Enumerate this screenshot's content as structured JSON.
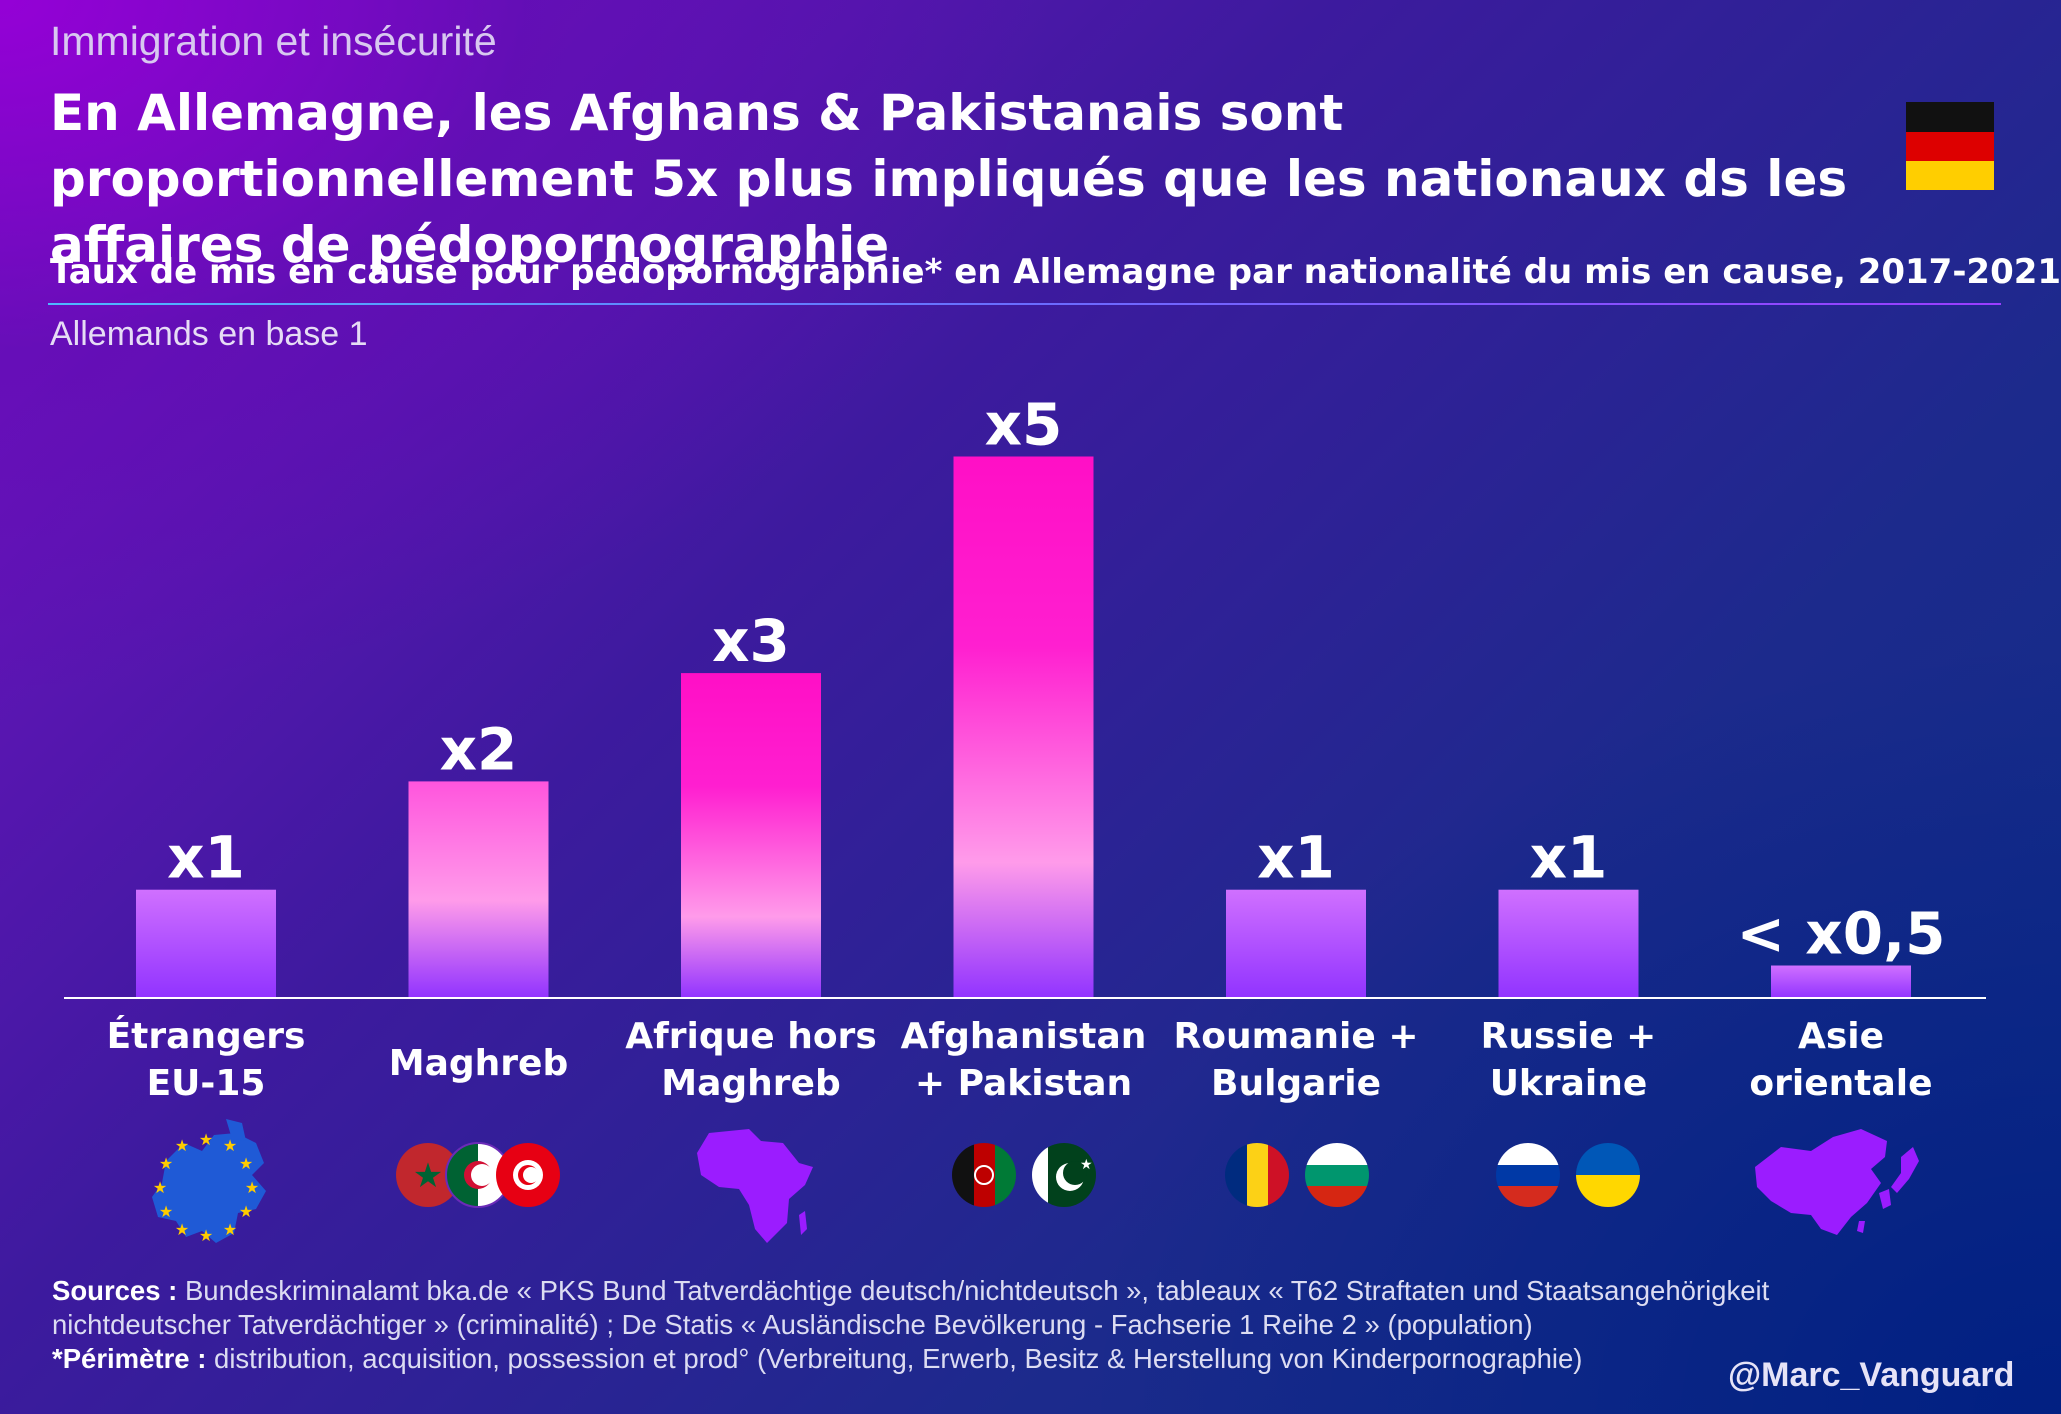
{
  "kicker": "Immigration et insécurité",
  "headline": "En Allemagne, les Afghans & Pakistanais sont proportionnellement 5x plus impliqués que les nationaux ds les affaires de pédopornographie",
  "chart_data": {
    "type": "bar",
    "title": "Taux de mis en cause pour pédopornographie* en Allemagne par nationalité du mis en cause, 2017-2021",
    "subtitle": "Allemands en base 1",
    "categories": [
      [
        "Étrangers",
        "EU-15"
      ],
      [
        "Maghreb"
      ],
      [
        "Afrique hors",
        "Maghreb"
      ],
      [
        "Afghanistan",
        "+ Pakistan"
      ],
      [
        "Roumanie +",
        "Bulgarie"
      ],
      [
        "Russie +",
        "Ukraine"
      ],
      [
        "Asie",
        "orientale"
      ]
    ],
    "values": [
      1,
      2,
      3,
      5,
      1,
      1,
      0.3
    ],
    "data_labels": [
      "x1",
      "x2",
      "x3",
      "x5",
      "x1",
      "x1",
      "< x0,5"
    ],
    "ylim": [
      0,
      5
    ],
    "grid": false,
    "legend": "none",
    "colors": {
      "bar_top_hot": "#ff10c8",
      "bar_mid": "#ff9bea",
      "bar_bottom": "#9133ff",
      "baseline": "#ffffff"
    }
  },
  "sources": {
    "label": "Sources :",
    "text": " Bundeskriminalamt bka.de « PKS Bund Tatverdächtige deutsch/nichtdeutsch », tableaux « T62 Straftaten und Staatsangehörigkeit nichtdeutscher Tatverdächtiger » (criminalité) ; De Statis « Ausländische Bevölkerung - Fachserie 1 Reihe 2 » (population)",
    "perimeter_label": "*Périmètre :",
    "perimeter_text": " distribution, acquisition, possession et prod° (Verbreitung, Erwerb, Besitz & Herstellung von Kinderpornographie)"
  },
  "handle": "@Marc_Vanguard",
  "icons": [
    "germany-flag-icon",
    "eu-map-icon",
    "morocco-flag-icon",
    "algeria-flag-icon",
    "tunisia-flag-icon",
    "africa-map-icon",
    "afghanistan-flag-icon",
    "pakistan-flag-icon",
    "romania-flag-icon",
    "bulgaria-flag-icon",
    "russia-flag-icon",
    "ukraine-flag-icon",
    "east-asia-map-icon"
  ]
}
